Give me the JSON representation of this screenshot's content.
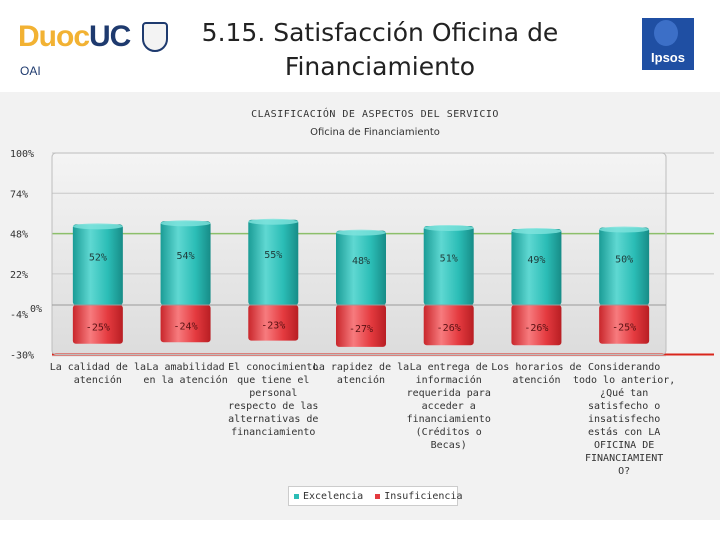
{
  "header": {
    "logo_part1": "Duoc",
    "logo_part2": "UC",
    "unit": "OAI",
    "title": "5.15. Satisfacción Oficina de Financiamiento",
    "brand": "Ipsos"
  },
  "colors": {
    "excelencia": "#2bbdb6",
    "insuficiencia": "#e43a3f",
    "axis_red": "#d9261c",
    "grid_green": "#8cbf6a"
  },
  "chart_data": {
    "type": "bar",
    "title": "CLASIFICACIÓN DE ASPECTOS DEL SERVICIO",
    "subtitle": "Oficina de Financiamiento",
    "y_ticks": [
      {
        "value": 100,
        "label": "100%"
      },
      {
        "value": 74,
        "label": "74%"
      },
      {
        "value": 48,
        "label": "48%"
      },
      {
        "value": 22,
        "label": "22%"
      },
      {
        "value": 0,
        "label": "0%"
      },
      {
        "value": -4,
        "label": "-4%"
      },
      {
        "value": -30,
        "label": "-30%"
      }
    ],
    "ylim": [
      -30,
      100
    ],
    "categories": [
      [
        "La calidad de la",
        "atención"
      ],
      [
        "La amabilidad",
        "en la atención"
      ],
      [
        "El conocimiento",
        "que tiene el",
        "personal",
        "respecto de las",
        "alternativas de",
        "financiamiento"
      ],
      [
        "La rapidez de la",
        "atención"
      ],
      [
        "La entrega de",
        "información",
        "requerida para",
        "acceder a",
        "financiamiento",
        "(Créditos o",
        "Becas)"
      ],
      [
        "Los horarios de",
        "atención"
      ],
      [
        "Considerando",
        "todo lo anterior,",
        "¿Qué tan",
        "satisfecho o",
        "insatisfecho",
        "estás con LA",
        "OFICINA DE",
        "FINANCIAMIENT",
        "O?"
      ]
    ],
    "series": [
      {
        "name": "Excelencia",
        "values": [
          52,
          54,
          55,
          48,
          51,
          49,
          50
        ],
        "labels": [
          "52%",
          "54%",
          "55%",
          "48%",
          "51%",
          "49%",
          "50%"
        ]
      },
      {
        "name": "Insuficiencia",
        "values": [
          -25,
          -24,
          -23,
          -27,
          -26,
          -26,
          -25
        ],
        "labels": [
          "-25%",
          "-24%",
          "-23%",
          "-27%",
          "-26%",
          "-26%",
          "-25%"
        ]
      }
    ],
    "legend": [
      "Excelencia",
      "Insuficiencia"
    ],
    "legend_position": "bottom-center"
  }
}
